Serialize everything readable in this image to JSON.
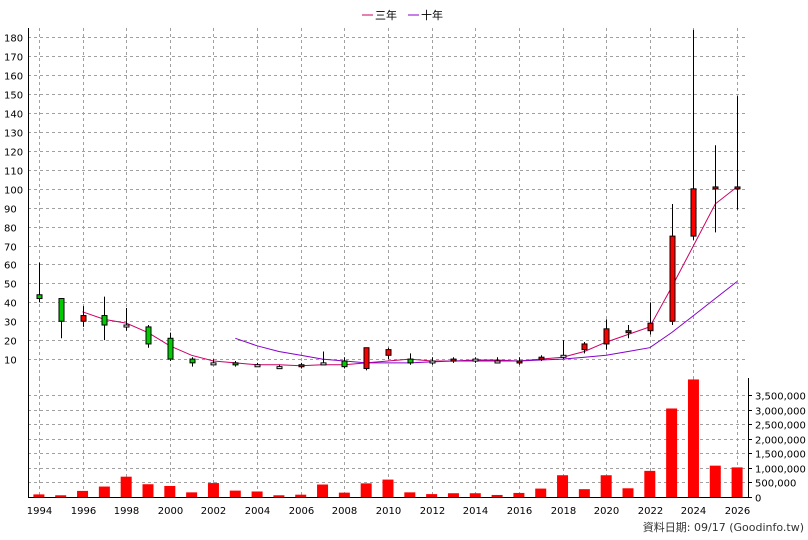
{
  "legend": [
    {
      "name": "三年",
      "color": "#cc0066"
    },
    {
      "name": "十年",
      "color": "#8800cc"
    }
  ],
  "footer": "資料日期: 09/17  (Goodinfo.tw)",
  "chart_data": [
    {
      "type": "candlestick",
      "x": [
        1994,
        1995,
        1996,
        1997,
        1998,
        1999,
        2000,
        2001,
        2002,
        2003,
        2004,
        2005,
        2006,
        2007,
        2008,
        2009,
        2010,
        2011,
        2012,
        2013,
        2014,
        2015,
        2016,
        2017,
        2018,
        2019,
        2020,
        2021,
        2022,
        2023,
        2024,
        2025,
        2026
      ],
      "open": [
        44,
        42,
        30,
        33,
        28,
        27,
        21,
        10,
        8,
        8,
        7,
        6,
        6,
        8,
        9,
        5,
        12,
        10,
        9,
        9,
        10,
        9,
        8,
        10,
        12,
        15,
        18,
        24,
        25,
        30,
        75,
        100,
        100
      ],
      "high": [
        61,
        42,
        38,
        43,
        37,
        28,
        24,
        11,
        10,
        9,
        8,
        7,
        8,
        14,
        11,
        16,
        16,
        13,
        11,
        11,
        11,
        11,
        11,
        12,
        20,
        19,
        31,
        28,
        40,
        92,
        184,
        123,
        149
      ],
      "low": [
        40,
        21,
        27,
        20,
        25,
        16,
        9,
        6,
        7,
        6,
        6,
        5,
        5,
        7,
        5,
        4,
        10,
        7,
        7,
        8,
        8,
        8,
        7,
        9,
        10,
        13,
        15,
        21,
        23,
        28,
        73,
        77,
        89
      ],
      "close": [
        42,
        30,
        33,
        28,
        28,
        18,
        10,
        8,
        8,
        7,
        7,
        6,
        7,
        8,
        6,
        16,
        15,
        8,
        9,
        10,
        10,
        9,
        9,
        11,
        12,
        18,
        26,
        25,
        29,
        75,
        100,
        101,
        101
      ],
      "xlim": [
        1993.5,
        2026.5
      ],
      "ylim": [
        0,
        185
      ],
      "yticks": [
        10,
        20,
        30,
        40,
        50,
        60,
        70,
        80,
        90,
        100,
        110,
        120,
        130,
        140,
        150,
        160,
        170,
        180
      ],
      "grid": true
    },
    {
      "type": "line",
      "series": [
        {
          "name": "三年",
          "x": [
            1996,
            1997,
            1998,
            1999,
            2000,
            2001,
            2002,
            2003,
            2004,
            2005,
            2006,
            2007,
            2008,
            2009,
            2010,
            2011,
            2012,
            2013,
            2014,
            2015,
            2016,
            2017,
            2018,
            2019,
            2020,
            2021,
            2022,
            2023,
            2024,
            2025,
            2026
          ],
          "values": [
            35,
            31,
            29,
            24,
            17,
            12,
            9,
            8,
            7,
            7,
            6.5,
            7,
            7,
            8,
            9,
            10,
            9,
            9,
            9.5,
            9.5,
            9,
            10,
            11,
            14,
            19,
            23,
            27,
            48,
            70,
            92,
            101
          ]
        },
        {
          "name": "十年",
          "x": [
            2003,
            2004,
            2005,
            2006,
            2007,
            2008,
            2009,
            2010,
            2011,
            2012,
            2013,
            2014,
            2015,
            2016,
            2017,
            2018,
            2019,
            2020,
            2021,
            2022,
            2023,
            2024,
            2025,
            2026
          ],
          "values": [
            21,
            17,
            14,
            12,
            10,
            9,
            8,
            8,
            8,
            8.5,
            9,
            9,
            9,
            9,
            9.5,
            10,
            11,
            12,
            14,
            16,
            24,
            33,
            42,
            51
          ]
        }
      ]
    },
    {
      "type": "bar",
      "x": [
        1994,
        1995,
        1996,
        1997,
        1998,
        1999,
        2000,
        2001,
        2002,
        2003,
        2004,
        2005,
        2006,
        2007,
        2008,
        2009,
        2010,
        2011,
        2012,
        2013,
        2014,
        2015,
        2016,
        2017,
        2018,
        2019,
        2020,
        2021,
        2022,
        2023,
        2024,
        2025,
        2026
      ],
      "values": [
        90000,
        60000,
        210000,
        360000,
        700000,
        440000,
        380000,
        160000,
        480000,
        220000,
        190000,
        60000,
        80000,
        430000,
        150000,
        470000,
        600000,
        160000,
        100000,
        130000,
        130000,
        70000,
        140000,
        290000,
        750000,
        270000,
        750000,
        300000,
        900000,
        3050000,
        4050000,
        1080000,
        1020000
      ],
      "ylim": [
        0,
        4100000
      ],
      "yticks": [
        0,
        500000,
        1000000,
        1500000,
        2000000,
        2500000,
        3000000,
        3500000
      ],
      "ytick_labels": [
        "0",
        "500,000",
        "1,000,000",
        "1,500,000",
        "2,000,000",
        "2,500,000",
        "3,000,000",
        "3,500,000"
      ],
      "xtick_labels": [
        "1994",
        "1996",
        "1998",
        "2000",
        "2002",
        "2004",
        "2006",
        "2008",
        "2010",
        "2012",
        "2014",
        "2016",
        "2018",
        "2020",
        "2022",
        "2024",
        "2026"
      ]
    }
  ]
}
